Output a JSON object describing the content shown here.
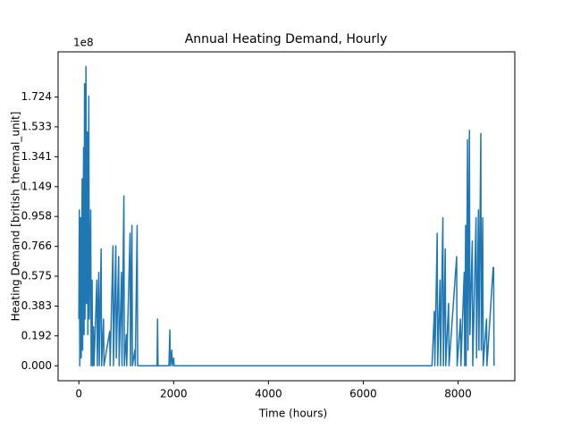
{
  "chart_data": {
    "type": "line",
    "title": "Annual Heating Demand, Hourly",
    "x_label": "Time (hours)",
    "y_label": "Heating Demand [british_thermal_unit]",
    "y_offset_label": "1e8",
    "color": "#1f77b4",
    "xlim": [
      -438,
      9197
    ],
    "ylim": [
      -0.0959,
      2.014
    ],
    "xticks": [
      0,
      2000,
      4000,
      6000,
      8000
    ],
    "yticks": [
      {
        "value": 0,
        "label": "0.000"
      },
      0.192,
      0.383,
      0.575,
      0.766,
      0.958,
      1.149,
      1.341,
      1.533,
      1.724
    ],
    "x": [
      0,
      10,
      20,
      40,
      50,
      70,
      80,
      100,
      110,
      120,
      130,
      150,
      160,
      180,
      190,
      210,
      220,
      250,
      260,
      280,
      290,
      310,
      320,
      380,
      390,
      420,
      430,
      470,
      480,
      520,
      530,
      650,
      660,
      720,
      730,
      780,
      790,
      840,
      850,
      900,
      910,
      950,
      960,
      1000,
      1010,
      1080,
      1090,
      1120,
      1130,
      1180,
      1190,
      1230,
      1240,
      1280,
      1650,
      1660,
      1670,
      1900,
      1920,
      1930,
      1960,
      1970,
      2000,
      2010,
      7450,
      7500,
      7510,
      7560,
      7570,
      7620,
      7630,
      7680,
      7690,
      7730,
      7740,
      7800,
      7810,
      7970,
      7980,
      8050,
      8060,
      8130,
      8140,
      8160,
      8170,
      8200,
      8210,
      8240,
      8250,
      8300,
      8310,
      8380,
      8390,
      8430,
      8440,
      8480,
      8490,
      8520,
      8530,
      8600,
      8610,
      8740,
      8750,
      8759
    ],
    "values": [
      0.3,
      1.0,
      0.0,
      0.95,
      0.05,
      1.2,
      0.1,
      1.4,
      0.2,
      1.81,
      0.3,
      1.92,
      0.4,
      1.5,
      0.2,
      1.73,
      0.3,
      1.0,
      0.0,
      0.55,
      0.0,
      0.25,
      0.0,
      0.55,
      0.0,
      0.6,
      0.0,
      0.75,
      0.0,
      0.3,
      0.0,
      0.22,
      0.0,
      0.77,
      0.0,
      0.77,
      0.05,
      0.7,
      0.0,
      0.6,
      0.0,
      1.09,
      0.0,
      0.2,
      0.0,
      0.85,
      0.0,
      0.9,
      0.0,
      0.1,
      0.0,
      0.9,
      0.0,
      0.0,
      0.0,
      0.3,
      0.0,
      0.0,
      0.23,
      0.0,
      0.1,
      0.0,
      0.05,
      0.0,
      0.0,
      0.35,
      0.0,
      0.85,
      0.0,
      0.55,
      0.0,
      0.95,
      0.0,
      0.75,
      0.0,
      0.4,
      0.0,
      0.7,
      0.0,
      0.3,
      0.0,
      0.6,
      0.0,
      0.9,
      0.0,
      1.45,
      0.1,
      1.51,
      0.2,
      0.8,
      0.0,
      0.95,
      0.05,
      1.0,
      0.1,
      1.49,
      0.1,
      0.95,
      0.0,
      0.3,
      0.0,
      0.63,
      0.63,
      0.0
    ]
  }
}
